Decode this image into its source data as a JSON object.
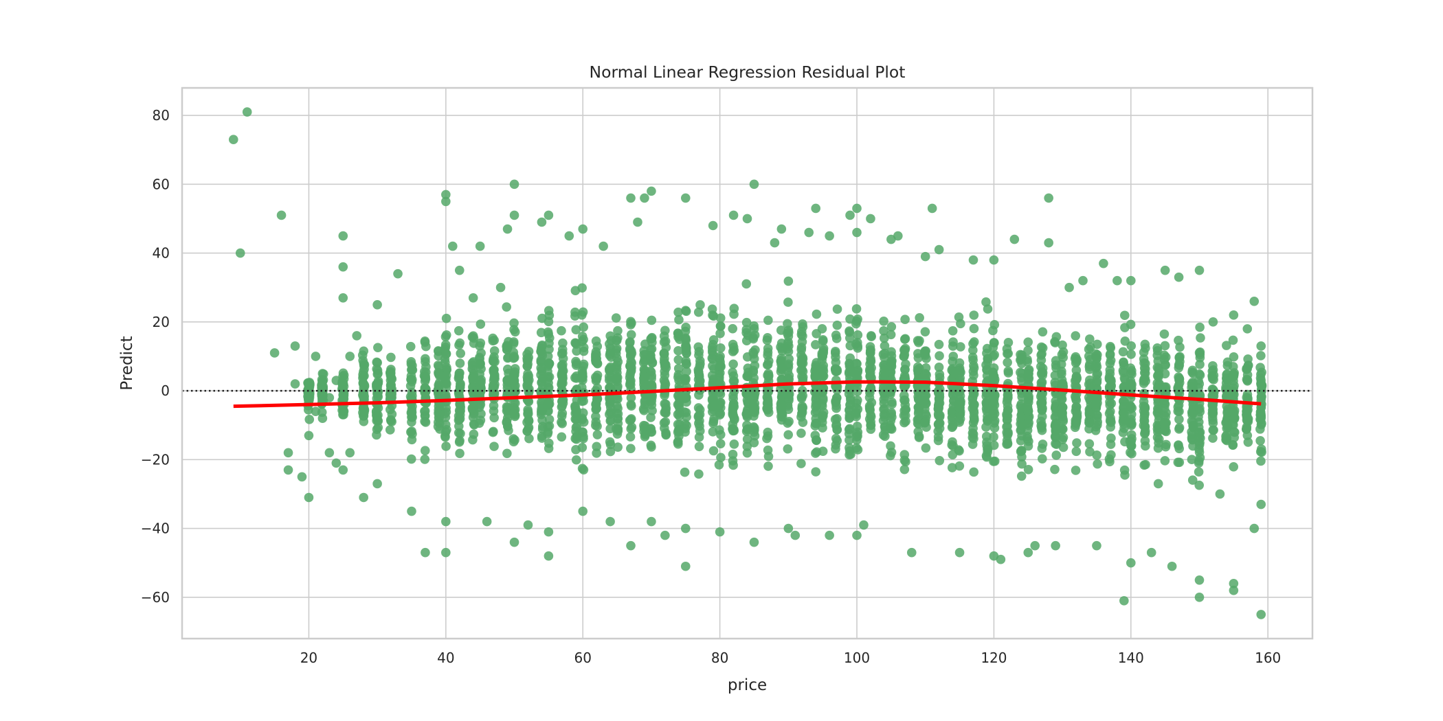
{
  "chart_data": {
    "type": "scatter",
    "title": "Normal Linear Regression Residual Plot",
    "xlabel": "price",
    "ylabel": "Predict",
    "xlim": [
      1.5,
      166.5
    ],
    "ylim": [
      -72,
      88
    ],
    "xticks": [
      20,
      40,
      60,
      80,
      100,
      120,
      140,
      160
    ],
    "yticks": [
      -60,
      -40,
      -20,
      0,
      20,
      40,
      60,
      80
    ],
    "xtick_labels": [
      "20",
      "40",
      "60",
      "80",
      "100",
      "120",
      "140",
      "160"
    ],
    "ytick_labels": [
      "−60",
      "−40",
      "−20",
      "0",
      "20",
      "40",
      "60",
      "80"
    ],
    "grid": true,
    "reference_line": {
      "y": 0,
      "style": "dotted",
      "color": "#222222"
    },
    "point_color": "#55a868",
    "trend_color": "#ff0000",
    "series": [
      {
        "kind": "scatter",
        "points": [
          [
            9,
            73
          ],
          [
            11,
            81
          ],
          [
            10,
            40
          ],
          [
            16,
            51
          ],
          [
            15,
            11
          ],
          [
            17,
            -18
          ],
          [
            17,
            -23
          ],
          [
            18,
            13
          ],
          [
            18,
            2
          ],
          [
            19,
            -25
          ],
          [
            20,
            -13
          ],
          [
            20,
            -31
          ],
          [
            21,
            10
          ],
          [
            21,
            -6
          ],
          [
            22,
            -8
          ],
          [
            22,
            5
          ],
          [
            23,
            -18
          ],
          [
            23,
            -2
          ],
          [
            24,
            3
          ],
          [
            24,
            -21
          ],
          [
            25,
            45
          ],
          [
            25,
            36
          ],
          [
            25,
            27
          ],
          [
            25,
            -23
          ],
          [
            26,
            10
          ],
          [
            26,
            -18
          ],
          [
            27,
            16
          ],
          [
            28,
            -31
          ],
          [
            30,
            25
          ],
          [
            30,
            -27
          ],
          [
            33,
            34
          ],
          [
            35,
            -35
          ],
          [
            37,
            -47
          ],
          [
            40,
            57
          ],
          [
            40,
            55
          ],
          [
            41,
            42
          ],
          [
            40,
            -47
          ],
          [
            40,
            -38
          ],
          [
            42,
            35
          ],
          [
            44,
            27
          ],
          [
            45,
            42
          ],
          [
            46,
            -38
          ],
          [
            48,
            30
          ],
          [
            49,
            47
          ],
          [
            50,
            60
          ],
          [
            50,
            51
          ],
          [
            50,
            -44
          ],
          [
            52,
            -39
          ],
          [
            54,
            49
          ],
          [
            55,
            51
          ],
          [
            55,
            -48
          ],
          [
            55,
            -41
          ],
          [
            58,
            45
          ],
          [
            60,
            47
          ],
          [
            60,
            -35
          ],
          [
            63,
            42
          ],
          [
            64,
            -38
          ],
          [
            67,
            56
          ],
          [
            67,
            -45
          ],
          [
            68,
            49
          ],
          [
            69,
            56
          ],
          [
            70,
            58
          ],
          [
            70,
            -38
          ],
          [
            72,
            -42
          ],
          [
            75,
            56
          ],
          [
            75,
            -51
          ],
          [
            75,
            -40
          ],
          [
            79,
            48
          ],
          [
            80,
            -41
          ],
          [
            82,
            51
          ],
          [
            84,
            50
          ],
          [
            85,
            60
          ],
          [
            85,
            -44
          ],
          [
            88,
            43
          ],
          [
            89,
            47
          ],
          [
            90,
            -40
          ],
          [
            91,
            -42
          ],
          [
            93,
            46
          ],
          [
            94,
            53
          ],
          [
            96,
            45
          ],
          [
            96,
            -42
          ],
          [
            99,
            51
          ],
          [
            100,
            53
          ],
          [
            100,
            46
          ],
          [
            100,
            -42
          ],
          [
            101,
            -39
          ],
          [
            102,
            50
          ],
          [
            105,
            44
          ],
          [
            106,
            45
          ],
          [
            108,
            -47
          ],
          [
            110,
            39
          ],
          [
            111,
            53
          ],
          [
            112,
            41
          ],
          [
            115,
            -47
          ],
          [
            117,
            38
          ],
          [
            120,
            38
          ],
          [
            120,
            -48
          ],
          [
            121,
            -49
          ],
          [
            123,
            44
          ],
          [
            125,
            -47
          ],
          [
            126,
            -45
          ],
          [
            128,
            56
          ],
          [
            128,
            43
          ],
          [
            129,
            -45
          ],
          [
            131,
            30
          ],
          [
            133,
            32
          ],
          [
            135,
            -45
          ],
          [
            136,
            37
          ],
          [
            138,
            32
          ],
          [
            139,
            -61
          ],
          [
            140,
            32
          ],
          [
            140,
            -50
          ],
          [
            143,
            -47
          ],
          [
            144,
            -27
          ],
          [
            145,
            35
          ],
          [
            146,
            -51
          ],
          [
            147,
            33
          ],
          [
            150,
            35
          ],
          [
            150,
            -55
          ],
          [
            150,
            -60
          ],
          [
            152,
            20
          ],
          [
            153,
            -30
          ],
          [
            155,
            22
          ],
          [
            155,
            -56
          ],
          [
            155,
            -58
          ],
          [
            157,
            18
          ],
          [
            158,
            26
          ],
          [
            158,
            -40
          ],
          [
            159,
            13
          ],
          [
            159,
            -65
          ],
          [
            159,
            -33
          ],
          [
            159,
            3
          ]
        ],
        "dense_columns": [
          [
            20,
            -15,
            8
          ],
          [
            22,
            -12,
            8
          ],
          [
            25,
            -20,
            15
          ],
          [
            28,
            -22,
            20
          ],
          [
            30,
            -25,
            20
          ],
          [
            32,
            -28,
            20
          ],
          [
            35,
            -30,
            25
          ],
          [
            37,
            -33,
            28
          ],
          [
            39,
            -33,
            28
          ],
          [
            40,
            -35,
            43
          ],
          [
            42,
            -34,
            30
          ],
          [
            44,
            -33,
            30
          ],
          [
            45,
            -35,
            32
          ],
          [
            47,
            -34,
            35
          ],
          [
            49,
            -36,
            38
          ],
          [
            50,
            -36,
            45
          ],
          [
            52,
            -32,
            38
          ],
          [
            54,
            -30,
            40
          ],
          [
            55,
            -33,
            45
          ],
          [
            57,
            -30,
            38
          ],
          [
            59,
            -32,
            45
          ],
          [
            60,
            -35,
            48
          ],
          [
            62,
            -30,
            40
          ],
          [
            64,
            -35,
            45
          ],
          [
            65,
            -35,
            42
          ],
          [
            67,
            -32,
            48
          ],
          [
            69,
            -30,
            45
          ],
          [
            70,
            -34,
            48
          ],
          [
            72,
            -33,
            45
          ],
          [
            74,
            -33,
            47
          ],
          [
            75,
            -38,
            50
          ],
          [
            77,
            -33,
            46
          ],
          [
            79,
            -36,
            46
          ],
          [
            80,
            -38,
            50
          ],
          [
            82,
            -36,
            47
          ],
          [
            84,
            -35,
            48
          ],
          [
            85,
            -35,
            46
          ],
          [
            87,
            -35,
            43
          ],
          [
            89,
            -38,
            46
          ],
          [
            90,
            -40,
            45
          ],
          [
            92,
            -35,
            45
          ],
          [
            94,
            -37,
            45
          ],
          [
            95,
            -37,
            43
          ],
          [
            97,
            -38,
            44
          ],
          [
            99,
            -40,
            43
          ],
          [
            100,
            -42,
            53
          ],
          [
            102,
            -38,
            45
          ],
          [
            104,
            -37,
            40
          ],
          [
            105,
            -38,
            40
          ],
          [
            107,
            -38,
            38
          ],
          [
            109,
            -40,
            38
          ],
          [
            110,
            -40,
            38
          ],
          [
            112,
            -38,
            35
          ],
          [
            114,
            -40,
            35
          ],
          [
            115,
            -42,
            35
          ],
          [
            117,
            -42,
            36
          ],
          [
            119,
            -45,
            35
          ],
          [
            120,
            -48,
            38
          ],
          [
            122,
            -45,
            32
          ],
          [
            124,
            -46,
            32
          ],
          [
            125,
            -48,
            32
          ],
          [
            127,
            -45,
            32
          ],
          [
            129,
            -44,
            30
          ],
          [
            130,
            -42,
            28
          ],
          [
            132,
            -40,
            28
          ],
          [
            134,
            -40,
            28
          ],
          [
            135,
            -42,
            30
          ],
          [
            137,
            -45,
            28
          ],
          [
            139,
            -50,
            28
          ],
          [
            140,
            -48,
            32
          ],
          [
            142,
            -45,
            25
          ],
          [
            144,
            -45,
            25
          ],
          [
            145,
            -48,
            28
          ],
          [
            147,
            -45,
            25
          ],
          [
            149,
            -48,
            28
          ],
          [
            150,
            -58,
            35
          ],
          [
            152,
            -42,
            20
          ],
          [
            154,
            -42,
            18
          ],
          [
            155,
            -45,
            22
          ],
          [
            157,
            -40,
            18
          ],
          [
            159,
            -42,
            15
          ]
        ]
      },
      {
        "kind": "lowess",
        "points": [
          [
            9,
            -4.5
          ],
          [
            20,
            -4.0
          ],
          [
            30,
            -3.5
          ],
          [
            40,
            -2.8
          ],
          [
            50,
            -2.0
          ],
          [
            60,
            -1.2
          ],
          [
            70,
            -0.2
          ],
          [
            80,
            0.9
          ],
          [
            90,
            2.0
          ],
          [
            100,
            2.6
          ],
          [
            110,
            2.5
          ],
          [
            120,
            1.5
          ],
          [
            130,
            0.2
          ],
          [
            140,
            -1.2
          ],
          [
            150,
            -2.5
          ],
          [
            159,
            -3.8
          ]
        ]
      }
    ]
  }
}
